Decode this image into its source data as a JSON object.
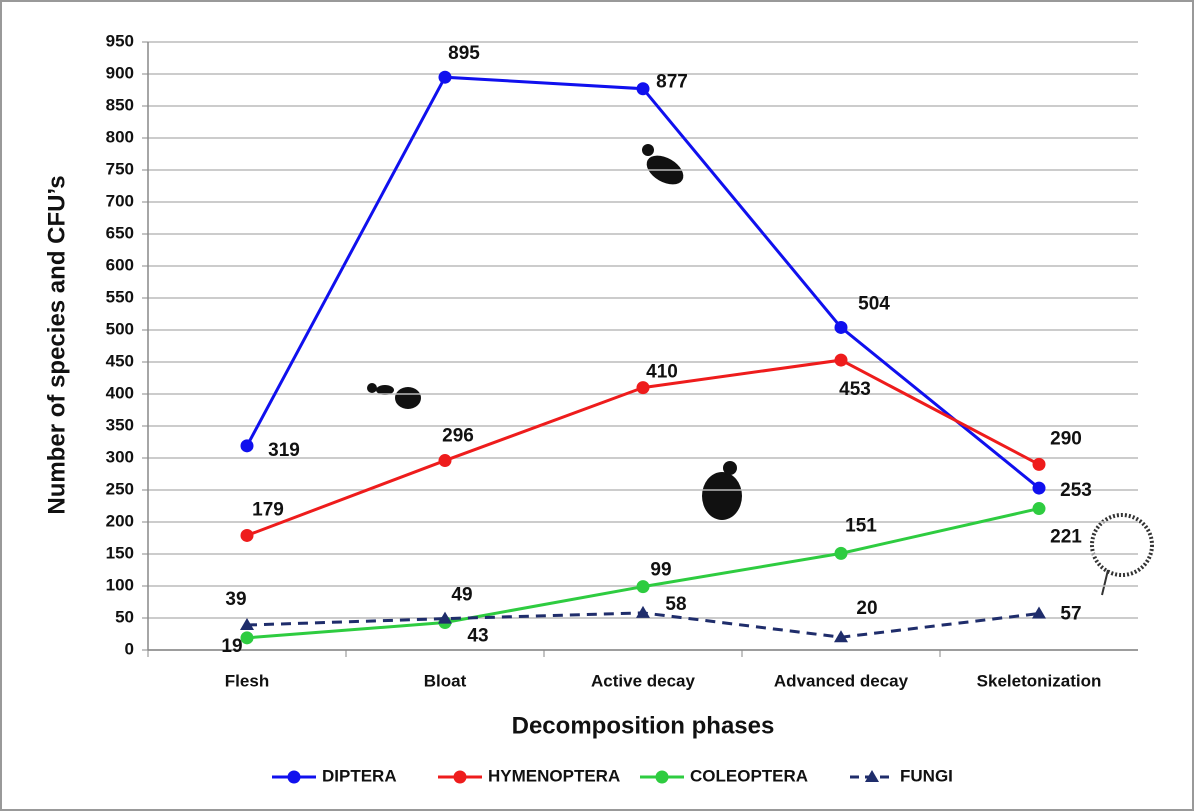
{
  "chart_data": {
    "type": "line",
    "x_label": "Decomposition phases",
    "y_label": "Number of species and CFU’s",
    "categories": [
      "Flesh",
      "Bloat",
      "Active decay",
      "Advanced decay",
      "Skeletonization"
    ],
    "series": [
      {
        "name": "DIPTERA",
        "color": "#1010ee",
        "marker": "circle",
        "line_style": "solid",
        "values": [
          319,
          895,
          877,
          504,
          253
        ]
      },
      {
        "name": "HYMENOPTERA",
        "color": "#ee1c1c",
        "marker": "circle",
        "line_style": "solid",
        "values": [
          179,
          296,
          410,
          453,
          290
        ]
      },
      {
        "name": "COLEOPTERA",
        "color": "#2ecc40",
        "marker": "circle",
        "line_style": "solid",
        "values": [
          19,
          43,
          99,
          151,
          221
        ]
      },
      {
        "name": "FUNGI",
        "color": "#1f2d6b",
        "marker": "triangle",
        "line_style": "dashed",
        "values": [
          39,
          49,
          58,
          20,
          57
        ]
      }
    ],
    "ylim": [
      0,
      950
    ],
    "yticks": [
      0,
      50,
      100,
      150,
      200,
      250,
      300,
      350,
      400,
      450,
      500,
      550,
      600,
      650,
      700,
      750,
      800,
      850,
      900,
      950
    ],
    "grid": true,
    "legend": "bottom"
  }
}
